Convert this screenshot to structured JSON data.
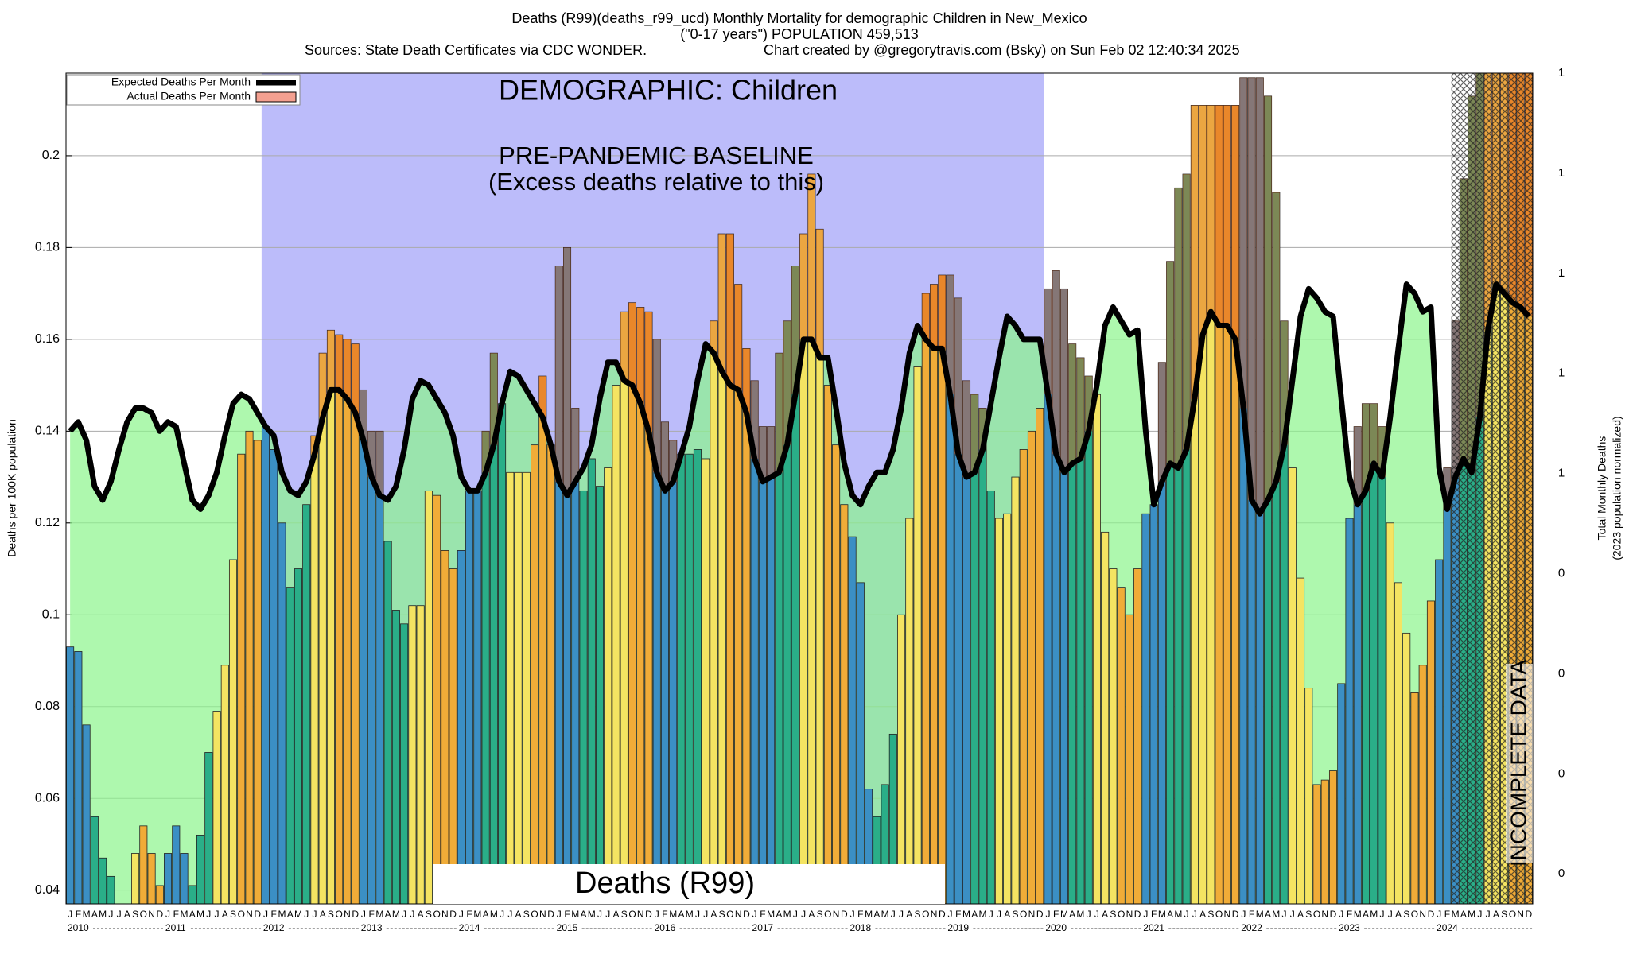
{
  "chart_data": {
    "type": "bar",
    "title": "Deaths (R99)(deaths_r99_ucd) Monthly Mortality for demographic Children in New_Mexico",
    "subtitle": "(\"0-17 years\") POPULATION 459,513",
    "source": "Sources: State Death Certificates via CDC WONDER.",
    "credit": "Chart created by @gregorytravis.com (Bsky) on Sun Feb 02 12:40:34 2025",
    "annotations": {
      "demographic": "DEMOGRAPHIC: Children",
      "baseline": "PRE-PANDEMIC BASELINE",
      "baseline_note": "(Excess deaths relative to this)",
      "cause": "Deaths (R99)",
      "incomplete": "INCOMPLETE DATA"
    },
    "baseline_years": [
      2012,
      2019
    ],
    "incomplete_from": {
      "year": 2024,
      "month": 3
    },
    "y_label": "Deaths per 100K population",
    "y2_label": "Total Monthly Deaths",
    "y2_label_note": "(2023 population normalized)",
    "month_labels": [
      "J",
      "F",
      "M",
      "A",
      "M",
      "J",
      "J",
      "A",
      "S",
      "O",
      "N",
      "D"
    ],
    "years": [
      2010,
      2011,
      2012,
      2013,
      2014,
      2015,
      2016,
      2017,
      2018,
      2019,
      2020,
      2021,
      2022,
      2023,
      2024
    ],
    "month_colors": [
      "#3b8fc4",
      "#3b8fc4",
      "#3b8fc4",
      "#2aae88",
      "#2aae88",
      "#2aae88",
      "#f4e462",
      "#f4e462",
      "#f4e462",
      "#f0ac38",
      "#f0ac38",
      "#f0ac38"
    ],
    "excess_color": "#e05a1a",
    "expected_fill": "#8cf58c",
    "baseline_color": "#bcbcfa",
    "ylim": [
      0.037,
      0.218
    ],
    "yticks": [
      0.04,
      0.06,
      0.08,
      0.1,
      0.12,
      0.14,
      0.16,
      0.18,
      0.2
    ],
    "y2lim": [
      0.17,
      1.0
    ],
    "y2ticks": [
      {
        "value": 0.2,
        "label": "0"
      },
      {
        "value": 0.3,
        "label": "0"
      },
      {
        "value": 0.4,
        "label": "0"
      },
      {
        "value": 0.5,
        "label": "0"
      },
      {
        "value": 0.6,
        "label": "1"
      },
      {
        "value": 0.7,
        "label": "1"
      },
      {
        "value": 0.8,
        "label": "1"
      },
      {
        "value": 0.9,
        "label": "1"
      },
      {
        "value": 1.0,
        "label": "1"
      }
    ],
    "grid": true,
    "legend": "top-left",
    "series": [
      {
        "name": "Expected Deaths Per Month",
        "color": "#000000",
        "values": [
          0.14,
          0.142,
          0.138,
          0.128,
          0.125,
          0.129,
          0.136,
          0.142,
          0.145,
          0.145,
          0.144,
          0.14,
          0.142,
          0.141,
          0.133,
          0.125,
          0.123,
          0.126,
          0.131,
          0.139,
          0.146,
          0.148,
          0.147,
          0.144,
          0.141,
          0.139,
          0.131,
          0.127,
          0.126,
          0.129,
          0.135,
          0.143,
          0.149,
          0.149,
          0.147,
          0.144,
          0.138,
          0.13,
          0.126,
          0.125,
          0.128,
          0.136,
          0.147,
          0.151,
          0.15,
          0.147,
          0.144,
          0.139,
          0.13,
          0.127,
          0.127,
          0.131,
          0.137,
          0.146,
          0.153,
          0.152,
          0.149,
          0.146,
          0.143,
          0.137,
          0.129,
          0.126,
          0.129,
          0.132,
          0.137,
          0.147,
          0.155,
          0.155,
          0.151,
          0.15,
          0.146,
          0.14,
          0.131,
          0.127,
          0.129,
          0.135,
          0.141,
          0.151,
          0.159,
          0.157,
          0.153,
          0.15,
          0.149,
          0.144,
          0.134,
          0.129,
          0.13,
          0.131,
          0.137,
          0.148,
          0.16,
          0.16,
          0.156,
          0.156,
          0.145,
          0.133,
          0.126,
          0.124,
          0.128,
          0.131,
          0.131,
          0.136,
          0.145,
          0.157,
          0.163,
          0.16,
          0.158,
          0.158,
          0.148,
          0.135,
          0.13,
          0.131,
          0.136,
          0.146,
          0.156,
          0.165,
          0.163,
          0.16,
          0.16,
          0.16,
          0.148,
          0.135,
          0.131,
          0.133,
          0.134,
          0.14,
          0.15,
          0.163,
          0.167,
          0.164,
          0.161,
          0.162,
          0.14,
          0.124,
          0.129,
          0.133,
          0.132,
          0.136,
          0.147,
          0.161,
          0.166,
          0.163,
          0.163,
          0.16,
          0.145,
          0.125,
          0.122,
          0.125,
          0.129,
          0.137,
          0.151,
          0.165,
          0.171,
          0.169,
          0.166,
          0.165,
          0.147,
          0.13,
          0.124,
          0.127,
          0.133,
          0.13,
          0.143,
          0.158,
          0.172,
          0.17,
          0.166,
          0.167,
          0.132,
          0.123,
          0.13,
          0.134,
          0.131,
          0.143,
          0.162,
          0.172,
          0.17,
          0.168,
          0.167,
          0.165
        ]
      },
      {
        "name": "Actual Deaths Per Month",
        "color": "#f4a090",
        "values": [
          0.093,
          0.092,
          0.076,
          0.056,
          0.047,
          0.043,
          0.037,
          0.037,
          0.048,
          0.054,
          0.048,
          0.041,
          0.048,
          0.054,
          0.048,
          0.041,
          0.052,
          0.07,
          0.079,
          0.089,
          0.112,
          0.135,
          0.14,
          0.138,
          0.141,
          0.136,
          0.12,
          0.106,
          0.11,
          0.124,
          0.139,
          0.157,
          0.162,
          0.161,
          0.16,
          0.159,
          0.149,
          0.14,
          0.14,
          0.116,
          0.101,
          0.098,
          0.102,
          0.102,
          0.127,
          0.126,
          0.114,
          0.11,
          0.114,
          0.127,
          0.127,
          0.14,
          0.157,
          0.146,
          0.131,
          0.131,
          0.131,
          0.137,
          0.152,
          0.137,
          0.176,
          0.18,
          0.145,
          0.127,
          0.134,
          0.128,
          0.132,
          0.15,
          0.166,
          0.168,
          0.167,
          0.166,
          0.16,
          0.142,
          0.138,
          0.135,
          0.135,
          0.136,
          0.134,
          0.164,
          0.183,
          0.183,
          0.172,
          0.158,
          0.151,
          0.141,
          0.141,
          0.157,
          0.164,
          0.176,
          0.183,
          0.196,
          0.184,
          0.15,
          0.137,
          0.124,
          0.117,
          0.107,
          0.062,
          0.056,
          0.063,
          0.074,
          0.1,
          0.121,
          0.154,
          0.17,
          0.172,
          0.174,
          0.174,
          0.169,
          0.151,
          0.148,
          0.145,
          0.127,
          0.121,
          0.122,
          0.13,
          0.136,
          0.14,
          0.145,
          0.171,
          0.175,
          0.171,
          0.159,
          0.156,
          0.152,
          0.148,
          0.118,
          0.11,
          0.106,
          0.1,
          0.11,
          0.122,
          0.124,
          0.155,
          0.177,
          0.193,
          0.196,
          0.211,
          0.211,
          0.211,
          0.211,
          0.211,
          0.211,
          0.217,
          0.217,
          0.217,
          0.213,
          0.192,
          0.164,
          0.132,
          0.108,
          0.084,
          0.063,
          0.064,
          0.066,
          0.085,
          0.121,
          0.141,
          0.146,
          0.146,
          0.141,
          0.12,
          0.107,
          0.096,
          0.083,
          0.089,
          0.103,
          0.112,
          0.132,
          0.164,
          0.195,
          0.213,
          0.218,
          0.218,
          0.218,
          0.218,
          0.218,
          0.218,
          0.218
        ]
      }
    ]
  }
}
